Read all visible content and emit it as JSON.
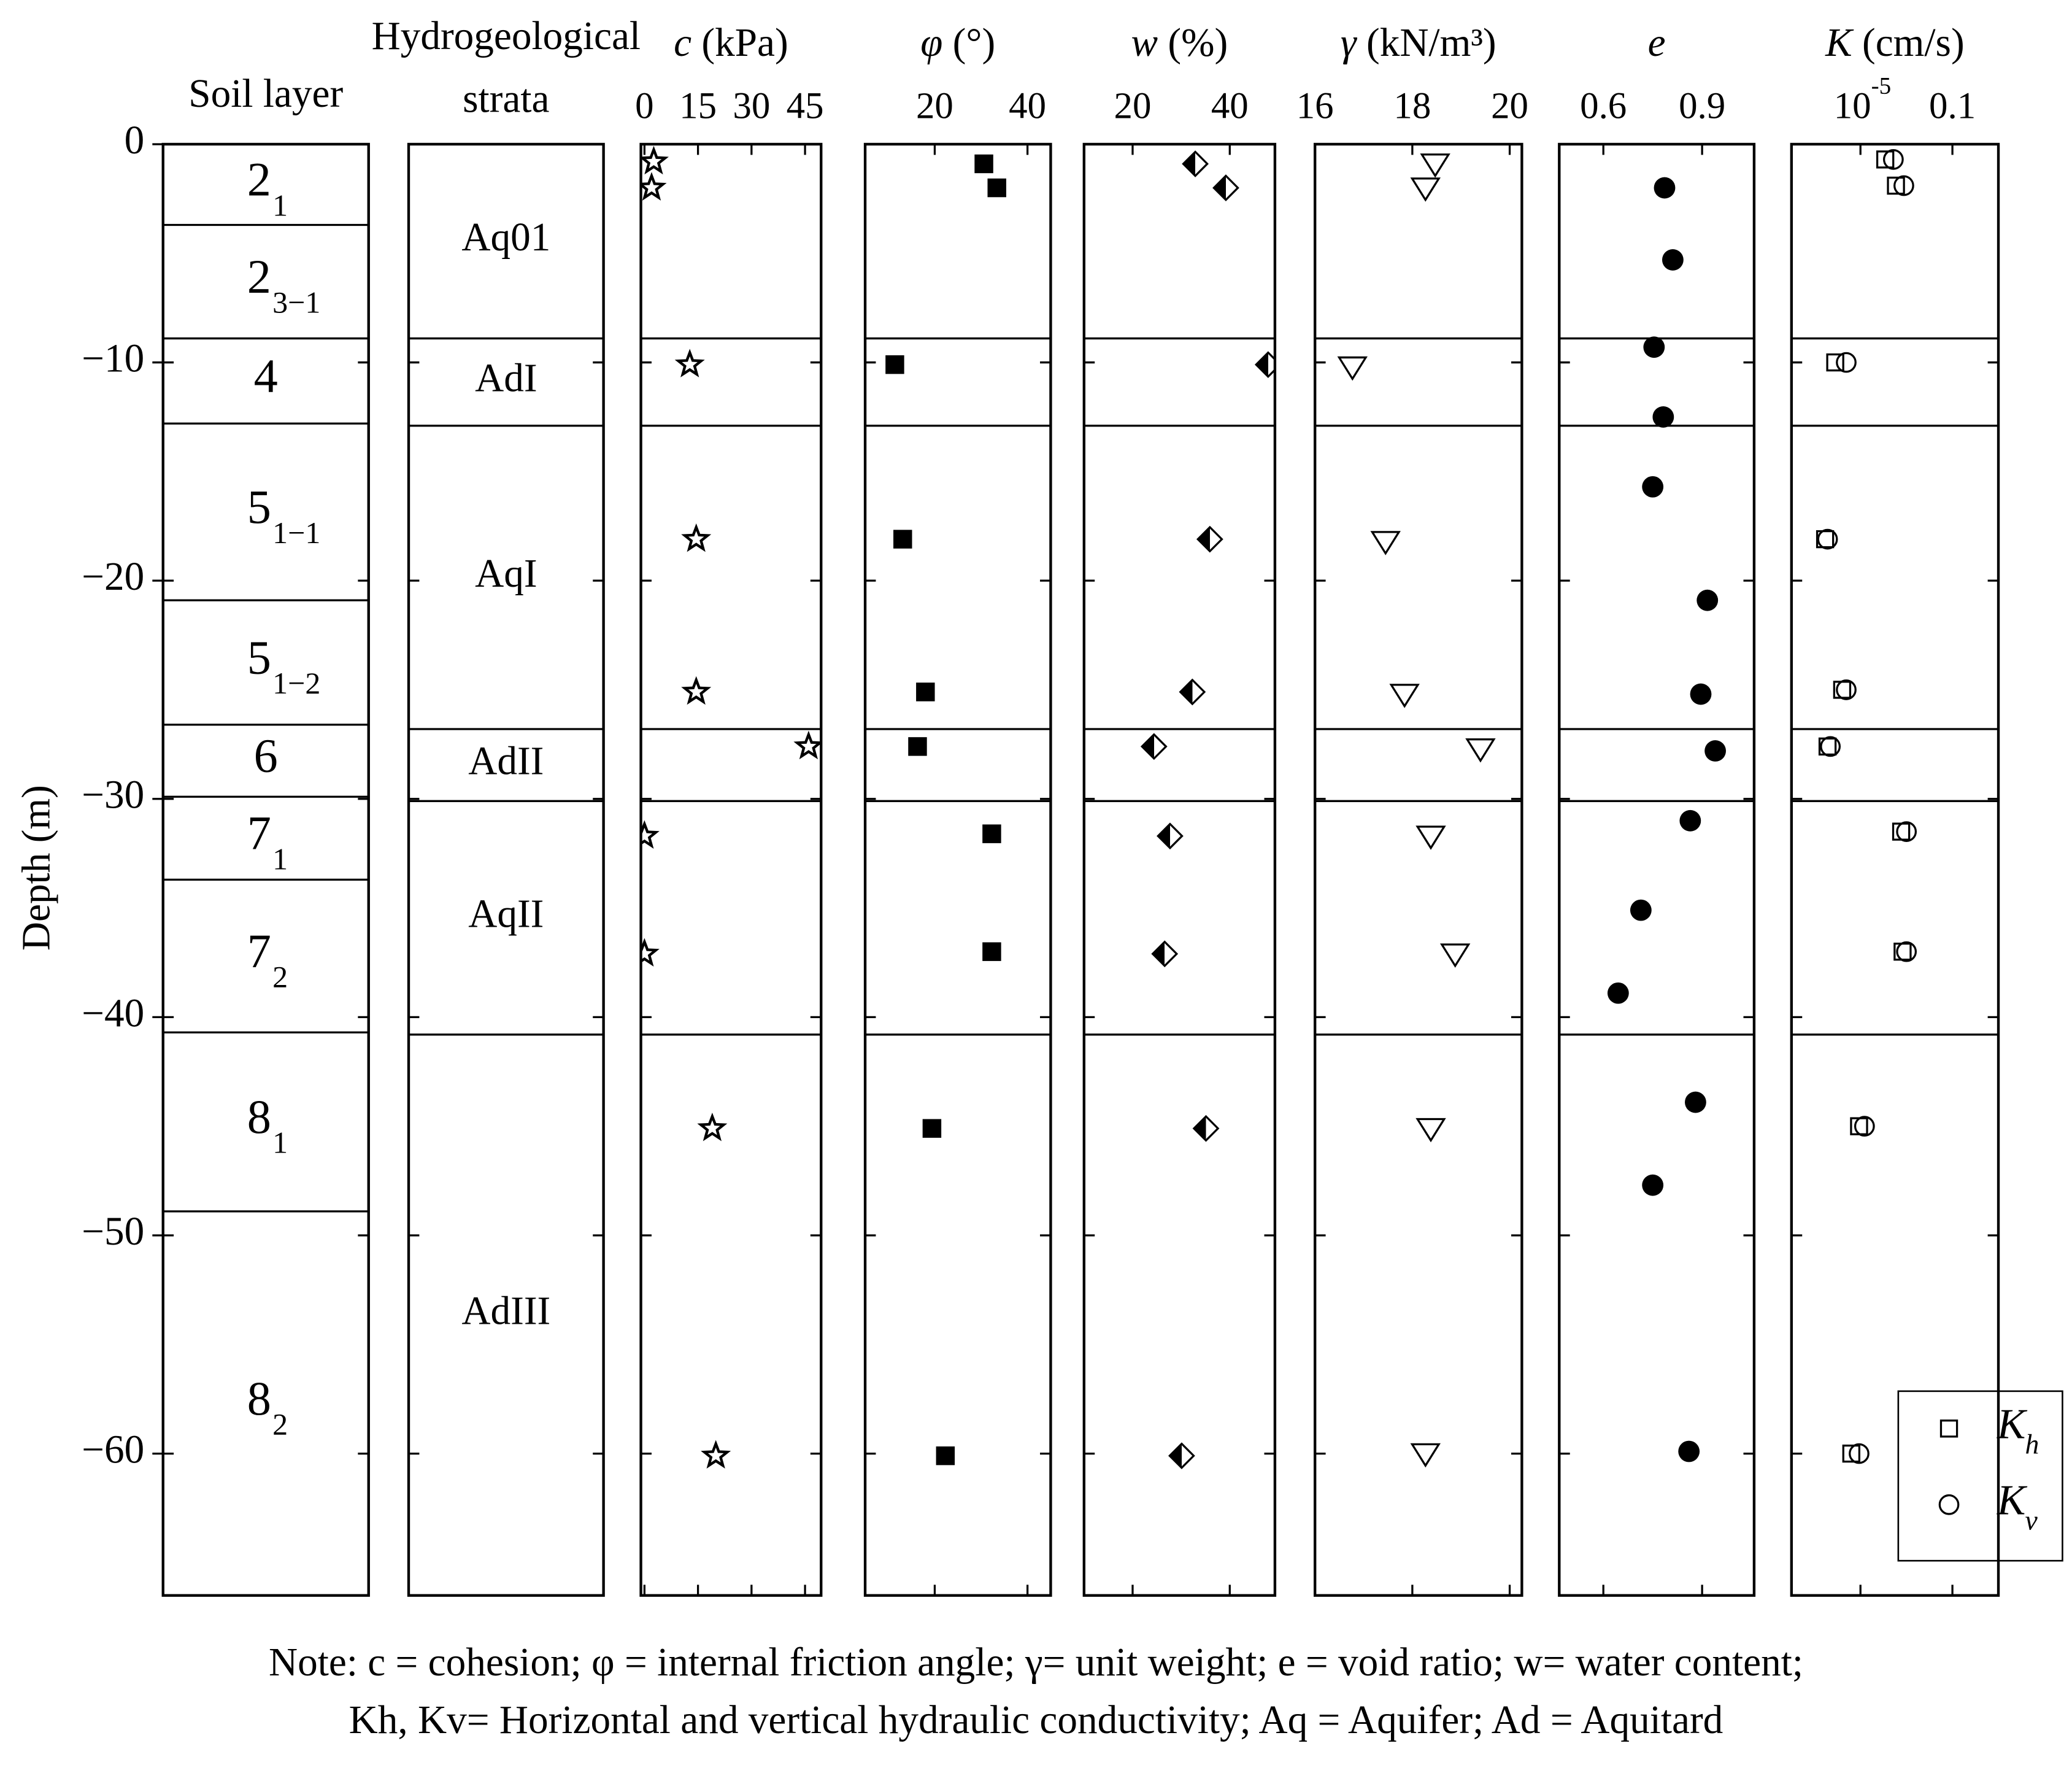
{
  "chart_data": [
    {
      "type": "layers",
      "title": [
        "Soil layer"
      ],
      "ylabel": "Depth (m)",
      "ylim": [
        -66.5,
        0
      ],
      "yticks": [
        0,
        {
          "value": -10,
          "label": "−10"
        },
        {
          "value": -20,
          "label": "−20"
        },
        {
          "value": -30,
          "label": "−30"
        },
        {
          "value": -40,
          "label": "−40"
        },
        {
          "value": -50,
          "label": "−50"
        },
        {
          "value": -60,
          "label": "−60"
        }
      ],
      "boundaries": [
        -3.7,
        -8.9,
        -12.8,
        -20.9,
        -26.6,
        -29.9,
        -33.7,
        -40.7,
        -48.9
      ],
      "layers": [
        {
          "label": "2",
          "sub": "1"
        },
        {
          "label": "2",
          "sub": "3−1"
        },
        {
          "label": "4"
        },
        {
          "label": "5",
          "sub": "1−1"
        },
        {
          "label": "5",
          "sub": "1−2"
        },
        {
          "label": "6"
        },
        {
          "label": "7",
          "sub": "1"
        },
        {
          "label": "7",
          "sub": "2"
        },
        {
          "label": "8",
          "sub": "1"
        },
        {
          "label": "8",
          "sub": "2"
        }
      ]
    },
    {
      "type": "layers",
      "title": [
        "Hydrogeological",
        "strata"
      ],
      "boundaries": [
        -8.9,
        -12.9,
        -26.8,
        -30.1,
        -40.8
      ],
      "layers": [
        {
          "label": "Aq01"
        },
        {
          "label": "AdI"
        },
        {
          "label": "AqI"
        },
        {
          "label": "AdII"
        },
        {
          "label": "AqII"
        },
        {
          "label": "AdIII"
        }
      ]
    },
    {
      "type": "scatter",
      "xlabel": "c (kPa)",
      "xlim": [
        -1,
        49.5
      ],
      "xticks": [
        0,
        15,
        30,
        45
      ],
      "marker": "star",
      "color": "#000000",
      "x": [
        2.6,
        2,
        12.7,
        14.5,
        14.5,
        46,
        0,
        0,
        19,
        20
      ],
      "y": [
        -0.8,
        -2.0,
        -10.1,
        -18.1,
        -25.1,
        -27.6,
        -31.7,
        -37.1,
        -45.1,
        -60.1
      ]
    },
    {
      "type": "scatter",
      "xlabel": "φ (°)",
      "xlim": [
        5,
        45
      ],
      "xticks": [
        20,
        40
      ],
      "marker": "square",
      "color": "#000000",
      "x": [
        30.6,
        33.4,
        11.4,
        13.1,
        18,
        16.3,
        32.3,
        32.3,
        19.4,
        22.3
      ],
      "y": [
        -0.9,
        -2.0,
        -10.1,
        -18.1,
        -25.1,
        -27.6,
        -31.6,
        -37.0,
        -45.1,
        -60.1
      ]
    },
    {
      "type": "scatter",
      "xlabel": "w (%)",
      "xlim": [
        10,
        49.3
      ],
      "xticks": [
        20,
        40
      ],
      "marker": "diamond-half",
      "color": "#000000",
      "x": [
        32.9,
        39.2,
        47.9,
        35.9,
        32.3,
        24.4,
        27.7,
        26.6,
        35.1,
        30.1
      ],
      "y": [
        -0.9,
        -2.0,
        -10.1,
        -18.1,
        -25.1,
        -27.6,
        -31.7,
        -37.1,
        -45.1,
        -60.1
      ]
    },
    {
      "type": "scatter",
      "xlabel": "γ (kN/m³)",
      "xlim": [
        16,
        20.25
      ],
      "xticks": [
        16,
        18,
        20
      ],
      "marker": "triangle-down-open",
      "color": "#000000",
      "x": [
        18.47,
        18.27,
        16.77,
        17.45,
        17.84,
        19.4,
        18.38,
        18.88,
        18.38,
        18.27
      ],
      "y": [
        -0.9,
        -2.0,
        -10.2,
        -18.2,
        -25.2,
        -27.7,
        -31.7,
        -37.1,
        -45.1,
        -60.0
      ]
    },
    {
      "type": "scatter",
      "xlabel": "e",
      "xlim": [
        0.466,
        1.058
      ],
      "xticks": [
        0.6,
        0.9
      ],
      "marker": "circle",
      "color": "#000000",
      "x": [
        0.786,
        0.811,
        0.754,
        0.782,
        0.75,
        0.916,
        0.896,
        0.94,
        0.864,
        0.714,
        0.645,
        0.88,
        0.75,
        0.86
      ],
      "y": [
        -2.0,
        -5.3,
        -9.3,
        -12.5,
        -15.7,
        -20.9,
        -25.2,
        -27.8,
        -31.0,
        -35.1,
        -38.9,
        -43.9,
        -47.7,
        -59.9
      ]
    },
    {
      "type": "scatter",
      "xlabel": "K (cm/s)",
      "xscale": "log",
      "xlim": [
        1e-08,
        10
      ],
      "xticks": [
        {
          "value": 1e-05,
          "label": "10",
          "exponent": "-5"
        },
        0.1
      ],
      "legend": "lower right",
      "series": [
        {
          "name": "K",
          "subscript": "h",
          "marker": "square-open",
          "color": "#000000",
          "x": [
            0.00012,
            0.00035,
            8e-07,
            2.9e-07,
            1.6e-06,
            3.7e-07,
            0.00059,
            0.00068,
            8.7e-06,
            4e-06
          ],
          "y": [
            -0.7,
            -1.9,
            -10.0,
            -18.1,
            -25.0,
            -27.6,
            -31.5,
            -37.0,
            -45.0,
            -60.0
          ]
        },
        {
          "name": "K",
          "subscript": "v",
          "marker": "circle-open",
          "color": "#000000",
          "x": [
            0.00027,
            0.00077,
            2.4e-06,
            3.7e-07,
            2.4e-06,
            4.9e-07,
            0.001,
            0.001,
            1.5e-05,
            8.7e-06
          ],
          "y": [
            -0.7,
            -1.9,
            -10.0,
            -18.1,
            -25.0,
            -27.6,
            -31.5,
            -37.0,
            -45.0,
            -60.0
          ]
        }
      ]
    }
  ],
  "note": [
    "Note: c = cohesion; φ = internal friction angle; γ= unit weight; e = void ratio; w= water content;",
    "Kh, Kv= Horizontal and vertical hydraulic conductivity; Aq = Aquifer; Ad = Aquitard"
  ]
}
